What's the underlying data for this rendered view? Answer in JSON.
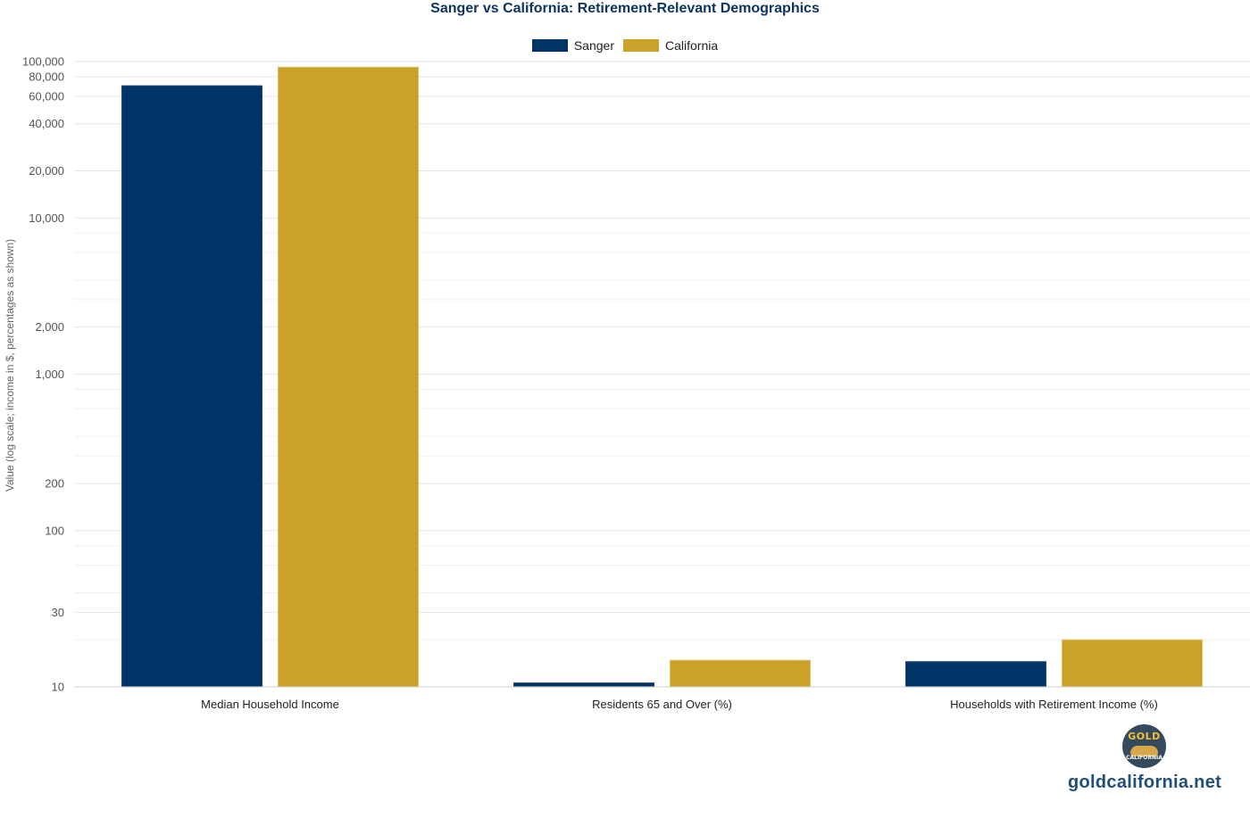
{
  "chart_data": {
    "type": "bar",
    "title": "Sanger vs California: Retirement-Relevant Demographics",
    "ylabel": "Value (log scale; income in $, percentages as shown)",
    "xlabel": "",
    "yscale": "log",
    "ylim": [
      10,
      100000
    ],
    "grid": true,
    "legend_position": "top-center",
    "yticks": [
      {
        "value": 10,
        "label": "10"
      },
      {
        "value": 30,
        "label": "30"
      },
      {
        "value": 100,
        "label": "100"
      },
      {
        "value": 200,
        "label": "200"
      },
      {
        "value": 1000,
        "label": "1,000"
      },
      {
        "value": 2000,
        "label": "2,000"
      },
      {
        "value": 10000,
        "label": "10,000"
      },
      {
        "value": 20000,
        "label": "20,000"
      },
      {
        "value": 40000,
        "label": "40,000"
      },
      {
        "value": 60000,
        "label": "60,000"
      },
      {
        "value": 80000,
        "label": "80,000"
      },
      {
        "value": 100000,
        "label": "100,000"
      }
    ],
    "minor_gridlines": [
      20,
      40,
      60,
      80,
      300,
      400,
      600,
      800,
      3000,
      4000,
      6000,
      8000
    ],
    "categories": [
      "Median Household Income",
      "Residents 65 and Over (%)",
      "Households with Retirement Income (%)"
    ],
    "series": [
      {
        "name": "Sanger",
        "color": "#003366",
        "values": [
          70000,
          10.6,
          14.5
        ]
      },
      {
        "name": "California",
        "color": "#c9a227",
        "values": [
          92000,
          14.8,
          20.0
        ]
      }
    ]
  },
  "brand": {
    "logo_top": "GOLD",
    "logo_bottom": "CALIFORNIA",
    "url": "goldcalifornia.net"
  }
}
